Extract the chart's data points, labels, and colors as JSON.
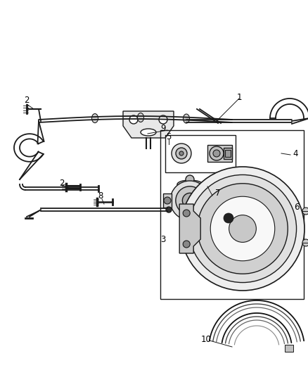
{
  "bg_color": "#ffffff",
  "line_color": "#1a1a1a",
  "gray1": "#999999",
  "gray2": "#cccccc",
  "gray3": "#e8e8e8",
  "fig_width": 4.38,
  "fig_height": 5.33,
  "dpi": 100
}
